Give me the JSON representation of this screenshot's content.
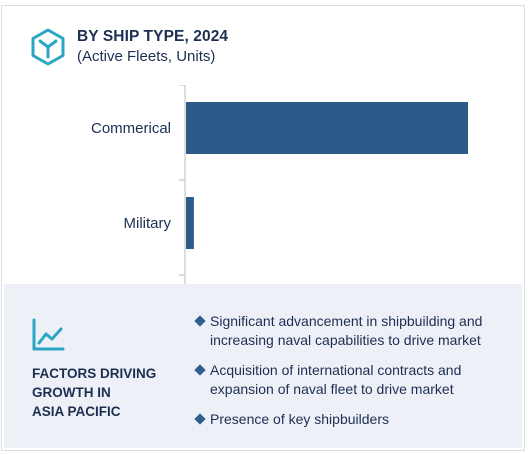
{
  "header": {
    "title": "BY SHIP TYPE, 2024",
    "subtitle": "(Active Fleets, Units)",
    "icon": "cube-network-icon"
  },
  "colors": {
    "bar": "#2e5a89",
    "axis": "#b9bcc4",
    "accent": "#2aa6c4",
    "panel": "#eef0f7"
  },
  "chart_data": {
    "type": "bar",
    "orientation": "horizontal",
    "categories": [
      "Commerical",
      "Military"
    ],
    "values": [
      100,
      2.8
    ],
    "xlim": [
      0,
      100
    ],
    "grid": false,
    "legend": "none"
  },
  "factors": {
    "icon": "line-chart-icon",
    "heading_lines": [
      "FACTORS DRIVING",
      "GROWTH IN",
      "ASIA PACIFIC"
    ],
    "items": [
      "Significant advancement in shipbuilding and increasing naval capabilities to drive market",
      "Acquisition of international contracts and expansion of naval fleet to drive market",
      "Presence of key shipbuilders"
    ]
  }
}
